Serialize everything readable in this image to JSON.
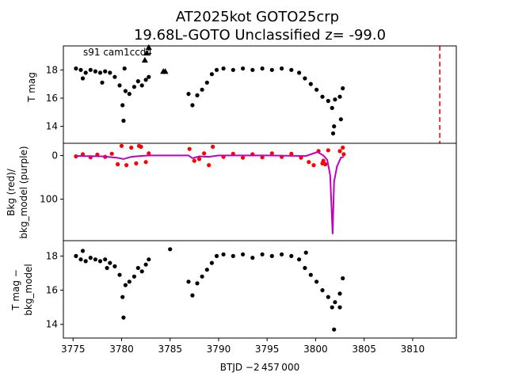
{
  "figure": {
    "title_line1": "AT2025kot  GOTO25crp",
    "title_line2": "19.68L-GOTO Unclassified z= -99.0",
    "xlabel": "BTJD −2 457 000",
    "x_ticks": [
      "3775",
      "3780",
      "3785",
      "3790",
      "3795",
      "3800",
      "3805",
      "3810"
    ]
  },
  "colors": {
    "points": "#000000",
    "bkg": "#ff0000",
    "bkg_model": "#bf00bf",
    "vline": "#ff0000"
  },
  "chart_data": [
    {
      "type": "scatter",
      "panel": "top",
      "ylabel": "T mag",
      "annotation": "s91 cam1ccd4",
      "xlim": [
        3774.0,
        3814.5
      ],
      "ylim": [
        19.7,
        12.8
      ],
      "y_ticks": [
        "14",
        "16",
        "18"
      ],
      "vline": {
        "x": 3812.8,
        "style": "dashed",
        "color": "red"
      },
      "series": [
        {
          "marker": "dot",
          "points": [
            [
              3775.3,
              18.1
            ],
            [
              3775.8,
              18.0
            ],
            [
              3776.3,
              17.8
            ],
            [
              3776.8,
              18.0
            ],
            [
              3777.3,
              17.9
            ],
            [
              3777.8,
              17.8
            ],
            [
              3778.3,
              17.9
            ],
            [
              3778.8,
              17.8
            ],
            [
              3779.3,
              17.5
            ],
            [
              3779.8,
              16.9
            ],
            [
              3780.1,
              15.5
            ],
            [
              3780.4,
              16.5
            ],
            [
              3780.8,
              16.3
            ],
            [
              3781.3,
              16.8
            ],
            [
              3781.7,
              17.2
            ],
            [
              3782.1,
              16.9
            ],
            [
              3782.5,
              17.3
            ],
            [
              3782.8,
              17.5
            ],
            [
              3786.9,
              16.3
            ],
            [
              3787.3,
              15.5
            ],
            [
              3787.8,
              16.2
            ],
            [
              3788.3,
              16.6
            ],
            [
              3788.8,
              17.1
            ],
            [
              3789.3,
              17.7
            ],
            [
              3789.8,
              18.0
            ],
            [
              3790.5,
              18.1
            ],
            [
              3791.5,
              18.0
            ],
            [
              3792.5,
              18.1
            ],
            [
              3793.5,
              18.0
            ],
            [
              3794.5,
              18.1
            ],
            [
              3795.5,
              18.0
            ],
            [
              3796.5,
              18.1
            ],
            [
              3797.5,
              18.0
            ],
            [
              3798.3,
              17.8
            ],
            [
              3798.9,
              17.4
            ],
            [
              3799.5,
              17.0
            ],
            [
              3800.1,
              16.6
            ],
            [
              3800.7,
              16.1
            ],
            [
              3801.3,
              15.8
            ],
            [
              3801.7,
              15.3
            ],
            [
              3802.0,
              15.9
            ],
            [
              3802.5,
              16.1
            ],
            [
              3802.8,
              16.7
            ],
            [
              3780.2,
              14.4
            ],
            [
              3801.8,
              13.5
            ],
            [
              3801.9,
              14.0
            ],
            [
              3802.6,
              14.5
            ],
            [
              3778.0,
              17.1
            ],
            [
              3780.3,
              18.1
            ],
            [
              3776.0,
              17.4
            ]
          ]
        },
        {
          "marker": "triangle",
          "points": [
            [
              3782.4,
              18.7
            ],
            [
              3782.6,
              19.2
            ],
            [
              3782.8,
              19.6
            ],
            [
              3784.3,
              17.9
            ],
            [
              3784.5,
              17.9
            ]
          ]
        }
      ]
    },
    {
      "type": "line",
      "panel": "middle",
      "ylabel_line1": "Bkg (red)/",
      "ylabel_line2": "bkg_model (purple)",
      "xlim": [
        3774.0,
        3814.5
      ],
      "ylim": [
        -28,
        195
      ],
      "y_ticks": [
        "0",
        "100"
      ],
      "series": [
        {
          "name": "Bkg",
          "marker": "dot",
          "points": [
            [
              3775.3,
              2
            ],
            [
              3776.0,
              -3
            ],
            [
              3776.8,
              4
            ],
            [
              3777.5,
              -2
            ],
            [
              3778.3,
              3
            ],
            [
              3779.0,
              -4
            ],
            [
              3779.6,
              20
            ],
            [
              3780.0,
              -22
            ],
            [
              3780.5,
              22
            ],
            [
              3781.0,
              -18
            ],
            [
              3781.5,
              18
            ],
            [
              3782.0,
              -20
            ],
            [
              3782.5,
              15
            ],
            [
              3782.8,
              -5
            ],
            [
              3787.0,
              -15
            ],
            [
              3787.5,
              12
            ],
            [
              3788.0,
              8
            ],
            [
              3788.5,
              -5
            ],
            [
              3789.0,
              22
            ],
            [
              3789.4,
              -20
            ],
            [
              3790.5,
              3
            ],
            [
              3791.5,
              -4
            ],
            [
              3792.5,
              5
            ],
            [
              3793.5,
              -3
            ],
            [
              3794.5,
              4
            ],
            [
              3795.5,
              -5
            ],
            [
              3796.5,
              3
            ],
            [
              3797.5,
              -4
            ],
            [
              3798.5,
              5
            ],
            [
              3799.3,
              15
            ],
            [
              3799.8,
              22
            ],
            [
              3800.3,
              -10
            ],
            [
              3800.8,
              12
            ],
            [
              3801.3,
              -12
            ],
            [
              3802.5,
              -10
            ],
            [
              3802.8,
              -18
            ],
            [
              3802.9,
              -3
            ],
            [
              3800.7,
              18
            ],
            [
              3801.0,
              20
            ],
            [
              3781.8,
              -22
            ]
          ]
        },
        {
          "name": "bkg_model",
          "marker": "line",
          "points": [
            [
              3775.3,
              1
            ],
            [
              3778.0,
              2
            ],
            [
              3779.5,
              5
            ],
            [
              3780.2,
              8
            ],
            [
              3781.0,
              3
            ],
            [
              3782.0,
              1
            ],
            [
              3782.8,
              0
            ],
            [
              3786.9,
              0
            ],
            [
              3787.3,
              6
            ],
            [
              3788.0,
              2
            ],
            [
              3789.0,
              3
            ],
            [
              3790.0,
              0
            ],
            [
              3795.0,
              0
            ],
            [
              3799.0,
              1
            ],
            [
              3800.2,
              -8
            ],
            [
              3800.8,
              0
            ],
            [
              3801.2,
              10
            ],
            [
              3801.5,
              45
            ],
            [
              3801.75,
              180
            ],
            [
              3801.9,
              60
            ],
            [
              3802.2,
              25
            ],
            [
              3802.6,
              5
            ],
            [
              3802.9,
              3
            ]
          ]
        }
      ]
    },
    {
      "type": "scatter",
      "panel": "bottom",
      "ylabel_line1": "T mag −",
      "ylabel_line2": "bkg_model",
      "xlim": [
        3774.0,
        3814.5
      ],
      "ylim": [
        18.9,
        13.2
      ],
      "y_ticks": [
        "14",
        "16",
        "18"
      ],
      "series": [
        {
          "marker": "dot",
          "points": [
            [
              3775.3,
              18.0
            ],
            [
              3775.8,
              17.8
            ],
            [
              3776.3,
              17.7
            ],
            [
              3776.8,
              17.9
            ],
            [
              3777.3,
              17.8
            ],
            [
              3777.8,
              17.7
            ],
            [
              3778.3,
              17.8
            ],
            [
              3778.8,
              17.6
            ],
            [
              3779.3,
              17.4
            ],
            [
              3779.8,
              16.9
            ],
            [
              3780.1,
              15.6
            ],
            [
              3780.4,
              16.3
            ],
            [
              3780.8,
              16.5
            ],
            [
              3781.3,
              16.8
            ],
            [
              3781.7,
              17.3
            ],
            [
              3782.1,
              17.1
            ],
            [
              3782.5,
              17.5
            ],
            [
              3782.8,
              17.8
            ],
            [
              3786.9,
              16.5
            ],
            [
              3787.3,
              15.7
            ],
            [
              3787.8,
              16.4
            ],
            [
              3788.3,
              16.8
            ],
            [
              3788.8,
              17.2
            ],
            [
              3789.3,
              17.6
            ],
            [
              3789.8,
              18.0
            ],
            [
              3790.5,
              18.1
            ],
            [
              3791.5,
              18.0
            ],
            [
              3792.5,
              18.1
            ],
            [
              3793.5,
              17.9
            ],
            [
              3794.5,
              18.1
            ],
            [
              3795.5,
              18.0
            ],
            [
              3796.5,
              18.1
            ],
            [
              3797.5,
              18.0
            ],
            [
              3798.3,
              17.8
            ],
            [
              3798.9,
              17.3
            ],
            [
              3799.5,
              16.9
            ],
            [
              3800.1,
              16.5
            ],
            [
              3800.7,
              16.0
            ],
            [
              3801.3,
              15.6
            ],
            [
              3801.7,
              15.0
            ],
            [
              3802.0,
              15.3
            ],
            [
              3802.5,
              15.8
            ],
            [
              3802.8,
              16.7
            ],
            [
              3780.2,
              14.4
            ],
            [
              3801.9,
              13.7
            ],
            [
              3802.5,
              15.0
            ],
            [
              3776.0,
              18.3
            ],
            [
              3785.0,
              18.4
            ],
            [
              3799.0,
              18.2
            ],
            [
              3778.5,
              17.3
            ]
          ]
        }
      ]
    }
  ]
}
